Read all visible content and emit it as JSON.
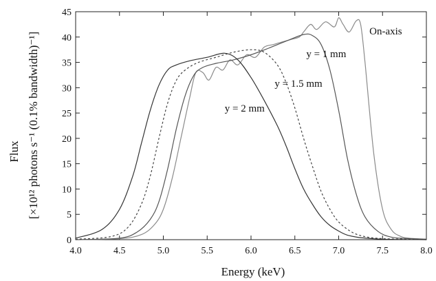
{
  "chart_data": {
    "type": "line",
    "xlabel": "Energy  (keV)",
    "ylabel_line1": "Flux",
    "ylabel_line2": "[×10¹² photons s⁻¹ (0.1% bandwidth)⁻¹]",
    "xlim": [
      4.0,
      8.0
    ],
    "ylim": [
      0,
      45
    ],
    "x_ticks": [
      "4.0",
      "4.5",
      "5.0",
      "5.5",
      "6.0",
      "6.5",
      "7.0",
      "7.5",
      "8.0"
    ],
    "y_ticks": [
      "0",
      "5",
      "10",
      "15",
      "20",
      "25",
      "30",
      "35",
      "40",
      "45"
    ],
    "grid": false,
    "legend": "none",
    "series": [
      {
        "name": "On-axis",
        "color": "#8a8a8a",
        "dash": "solid",
        "x": [
          4.0,
          4.5,
          4.75,
          4.9,
          5.0,
          5.1,
          5.2,
          5.3,
          5.37,
          5.45,
          5.52,
          5.6,
          5.68,
          5.76,
          5.85,
          5.95,
          6.05,
          6.15,
          6.25,
          6.35,
          6.45,
          6.55,
          6.6,
          6.68,
          6.75,
          6.85,
          6.95,
          7.0,
          7.05,
          7.12,
          7.2,
          7.25,
          7.3,
          7.4,
          7.5,
          7.6,
          7.7,
          7.8,
          8.0
        ],
        "y": [
          0,
          0.2,
          1.0,
          3.0,
          6.0,
          12.0,
          20.0,
          28.0,
          33.0,
          33.0,
          31.5,
          34.0,
          33.5,
          35.5,
          34.5,
          36.5,
          36.0,
          38.0,
          38.5,
          39.0,
          39.5,
          40.0,
          41.0,
          42.5,
          41.5,
          43.0,
          42.0,
          43.8,
          42.5,
          41.0,
          43.2,
          42.5,
          35.0,
          17.0,
          6.0,
          2.0,
          0.7,
          0.3,
          0.1
        ]
      },
      {
        "name": "y = 1 mm",
        "color": "#555555",
        "dash": "solid",
        "x": [
          4.0,
          4.5,
          4.7,
          4.85,
          4.95,
          5.05,
          5.15,
          5.25,
          5.35,
          5.45,
          5.6,
          5.8,
          6.0,
          6.2,
          6.4,
          6.6,
          6.7,
          6.8,
          6.9,
          7.0,
          7.1,
          7.2,
          7.3,
          7.45,
          7.6,
          7.8,
          8.0
        ],
        "y": [
          0,
          0.3,
          1.5,
          4.0,
          7.5,
          14.0,
          22.0,
          28.5,
          32.5,
          34.0,
          34.8,
          35.5,
          36.5,
          37.8,
          39.2,
          40.5,
          40.3,
          38.5,
          33.5,
          25.5,
          16.0,
          9.0,
          4.5,
          1.6,
          0.5,
          0.2,
          0.1
        ]
      },
      {
        "name": "y = 1.5 mm",
        "color": "#444444",
        "dash": "dashed",
        "x": [
          4.0,
          4.4,
          4.6,
          4.75,
          4.85,
          4.95,
          5.05,
          5.15,
          5.25,
          5.4,
          5.6,
          5.8,
          6.0,
          6.15,
          6.3,
          6.4,
          6.5,
          6.6,
          6.7,
          6.8,
          6.9,
          7.0,
          7.15,
          7.3,
          7.5,
          7.8,
          8.0
        ],
        "y": [
          0.1,
          0.6,
          2.5,
          7.0,
          12.5,
          20.0,
          27.0,
          31.5,
          33.5,
          35.0,
          36.0,
          37.0,
          37.5,
          37.0,
          34.5,
          31.0,
          26.0,
          20.0,
          14.5,
          9.5,
          6.0,
          3.5,
          1.5,
          0.6,
          0.2,
          0.1,
          0.0
        ]
      },
      {
        "name": "y = 2 mm",
        "color": "#333333",
        "dash": "solid",
        "x": [
          4.0,
          4.3,
          4.5,
          4.65,
          4.75,
          4.85,
          4.95,
          5.05,
          5.15,
          5.3,
          5.5,
          5.7,
          5.85,
          6.0,
          6.15,
          6.3,
          6.4,
          6.5,
          6.6,
          6.7,
          6.8,
          6.9,
          7.0,
          7.1,
          7.25,
          7.5,
          8.0
        ],
        "y": [
          0.3,
          2.0,
          6.0,
          12.5,
          19.0,
          25.5,
          30.5,
          33.5,
          34.5,
          35.3,
          36.0,
          36.8,
          35.5,
          32.0,
          27.5,
          22.5,
          18.5,
          14.0,
          10.0,
          7.0,
          4.5,
          2.8,
          1.7,
          0.9,
          0.4,
          0.1,
          0.0
        ]
      }
    ],
    "annotations": [
      {
        "text": "On-axis",
        "x": 7.35,
        "y": 40.5
      },
      {
        "text": "y = 1 mm",
        "x": 6.63,
        "y": 36.0
      },
      {
        "text": "y = 1.5 mm",
        "x": 6.27,
        "y": 30.2
      },
      {
        "text": "y = 2 mm",
        "x": 5.7,
        "y": 25.3
      }
    ]
  }
}
